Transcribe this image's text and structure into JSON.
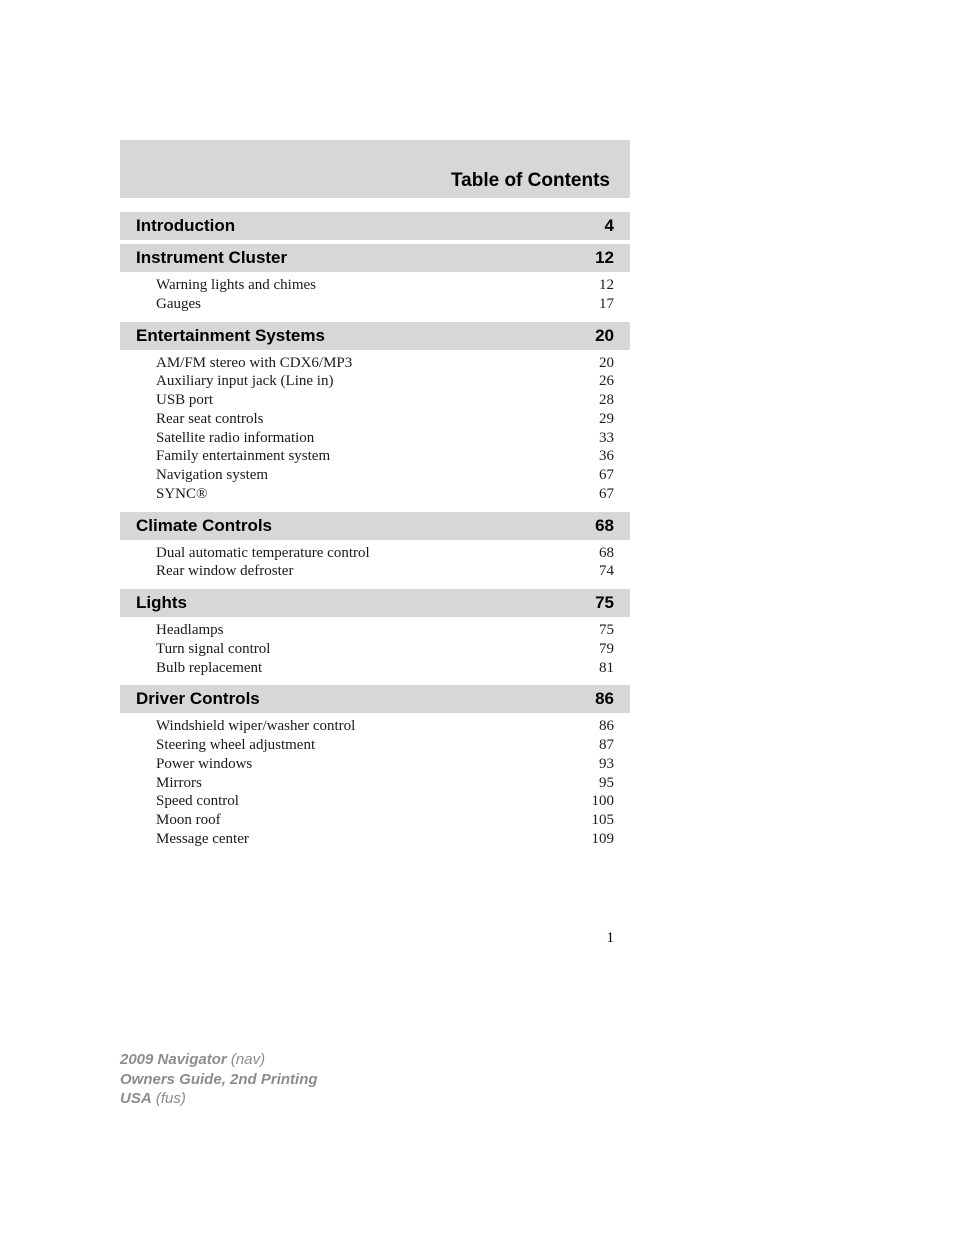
{
  "banner_title": "Table of Contents",
  "sections": [
    {
      "title": "Introduction",
      "page": "4",
      "items": []
    },
    {
      "title": "Instrument Cluster",
      "page": "12",
      "items": [
        {
          "label": "Warning lights and chimes",
          "page": "12"
        },
        {
          "label": "Gauges",
          "page": "17"
        }
      ]
    },
    {
      "title": "Entertainment Systems",
      "page": "20",
      "items": [
        {
          "label": "AM/FM stereo with CDX6/MP3",
          "page": "20"
        },
        {
          "label": "Auxiliary input jack (Line in)",
          "page": "26"
        },
        {
          "label": "USB port",
          "page": "28"
        },
        {
          "label": "Rear seat controls",
          "page": "29"
        },
        {
          "label": "Satellite radio information",
          "page": "33"
        },
        {
          "label": "Family entertainment system",
          "page": "36"
        },
        {
          "label": "Navigation system",
          "page": "67"
        },
        {
          "label": "SYNC®",
          "page": "67"
        }
      ]
    },
    {
      "title": "Climate Controls",
      "page": "68",
      "items": [
        {
          "label": "Dual automatic temperature control",
          "page": "68"
        },
        {
          "label": "Rear window defroster",
          "page": "74"
        }
      ]
    },
    {
      "title": "Lights",
      "page": "75",
      "items": [
        {
          "label": "Headlamps",
          "page": "75"
        },
        {
          "label": "Turn signal control",
          "page": "79"
        },
        {
          "label": "Bulb replacement",
          "page": "81"
        }
      ]
    },
    {
      "title": "Driver Controls",
      "page": "86",
      "items": [
        {
          "label": "Windshield wiper/washer control",
          "page": "86"
        },
        {
          "label": "Steering wheel adjustment",
          "page": "87"
        },
        {
          "label": "Power windows",
          "page": "93"
        },
        {
          "label": "Mirrors",
          "page": "95"
        },
        {
          "label": "Speed control",
          "page": "100"
        },
        {
          "label": "Moon roof",
          "page": "105"
        },
        {
          "label": "Message center",
          "page": "109"
        }
      ]
    }
  ],
  "page_number": "1",
  "footer": {
    "line1a": "2009 Navigator",
    "line1b": "(nav)",
    "line2": "Owners Guide, 2nd Printing",
    "line3a": "USA",
    "line3b": "(fus)"
  },
  "colors": {
    "banner_bg": "#d6d7d9",
    "section_bg": "#d6d7d9",
    "text": "#000000",
    "sub_text": "#1a1a1a",
    "footer_text": "#8b8c8e",
    "page_bg": "#ffffff"
  }
}
